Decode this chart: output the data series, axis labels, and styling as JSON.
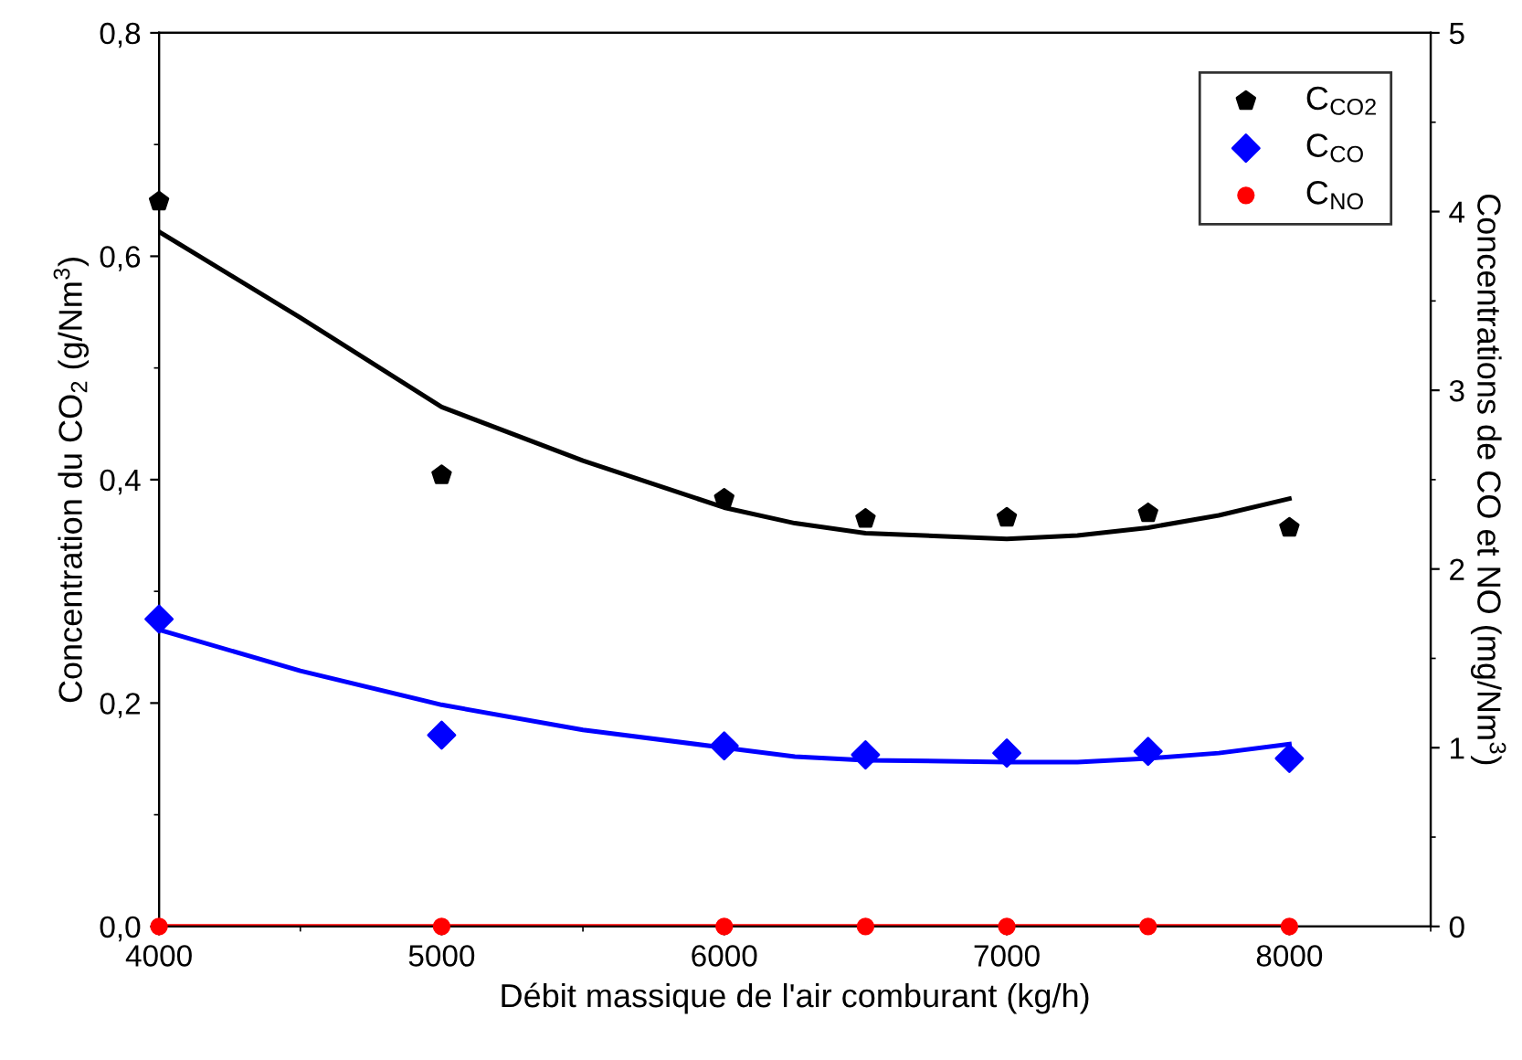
{
  "chart_data": {
    "type": "scatter",
    "xlabel": "Débit massique de l'air comburant (kg/h)",
    "ylabel": "Concentration du CO$_{2}$ (g/Nm$^{3}$)",
    "y2label": "Concentrations de CO et NO (mg/Nm$^{3}$)",
    "x": [
      4000,
      5000,
      6000,
      6500,
      7000,
      7500,
      8000
    ],
    "series": [
      {
        "name": "C$_{CO2}$",
        "color": "#000000",
        "values": [
          0.649,
          0.404,
          0.383,
          0.365,
          0.366,
          0.37,
          0.357
        ]
      },
      {
        "name": "C$_{CO}$",
        "color": "#0000ff",
        "marker": "diamond",
        "axis": "y2",
        "values": [
          1.72,
          1.07,
          1.01,
          0.96,
          0.97,
          0.98,
          0.94
        ]
      },
      {
        "name": "C$_{NO}$",
        "color": "#ff0000",
        "marker": "circle",
        "axis": "y2",
        "values": [
          0,
          0,
          0,
          0,
          0,
          0,
          0
        ]
      },
      {
        "type": "line",
        "color": "#000000",
        "x": [
          4000,
          4500,
          5000,
          5500,
          6000,
          6250,
          6500,
          7000,
          7250,
          7500,
          7750,
          8000
        ],
        "values": [
          0.622,
          0.545,
          0.465,
          0.417,
          0.375,
          0.361,
          0.352,
          0.347,
          0.35,
          0.357,
          0.368,
          0.383
        ]
      },
      {
        "type": "line",
        "color": "#0000ff",
        "axis": "y2",
        "x": [
          4000,
          4500,
          5000,
          5500,
          6000,
          6250,
          6500,
          7000,
          7250,
          7500,
          7750,
          8000
        ],
        "values": [
          1.66,
          1.43,
          1.24,
          1.1,
          1.0,
          0.95,
          0.93,
          0.92,
          0.92,
          0.94,
          0.97,
          1.02
        ]
      },
      {
        "type": "line",
        "color": "#ff0000",
        "axis": "y2",
        "values": [
          0,
          0,
          0,
          0,
          0,
          0,
          0
        ]
      }
    ],
    "xlim": [
      4000,
      8500
    ],
    "xticks": [
      4000,
      5000,
      6000,
      7000,
      8000
    ],
    "ylim": [
      0,
      0.8
    ],
    "yticks": [
      {
        "value": 0,
        "label": "0,0"
      },
      {
        "value": 0.2,
        "label": "0,2"
      },
      {
        "value": 0.4,
        "label": "0,4"
      },
      {
        "value": 0.6,
        "label": "0,6"
      },
      {
        "value": 0.8,
        "label": "0,8"
      }
    ],
    "y2lim": [
      0,
      5
    ],
    "y2ticks": [
      0,
      1,
      2,
      3,
      4,
      5
    ],
    "grid": false,
    "legend": "top right"
  }
}
